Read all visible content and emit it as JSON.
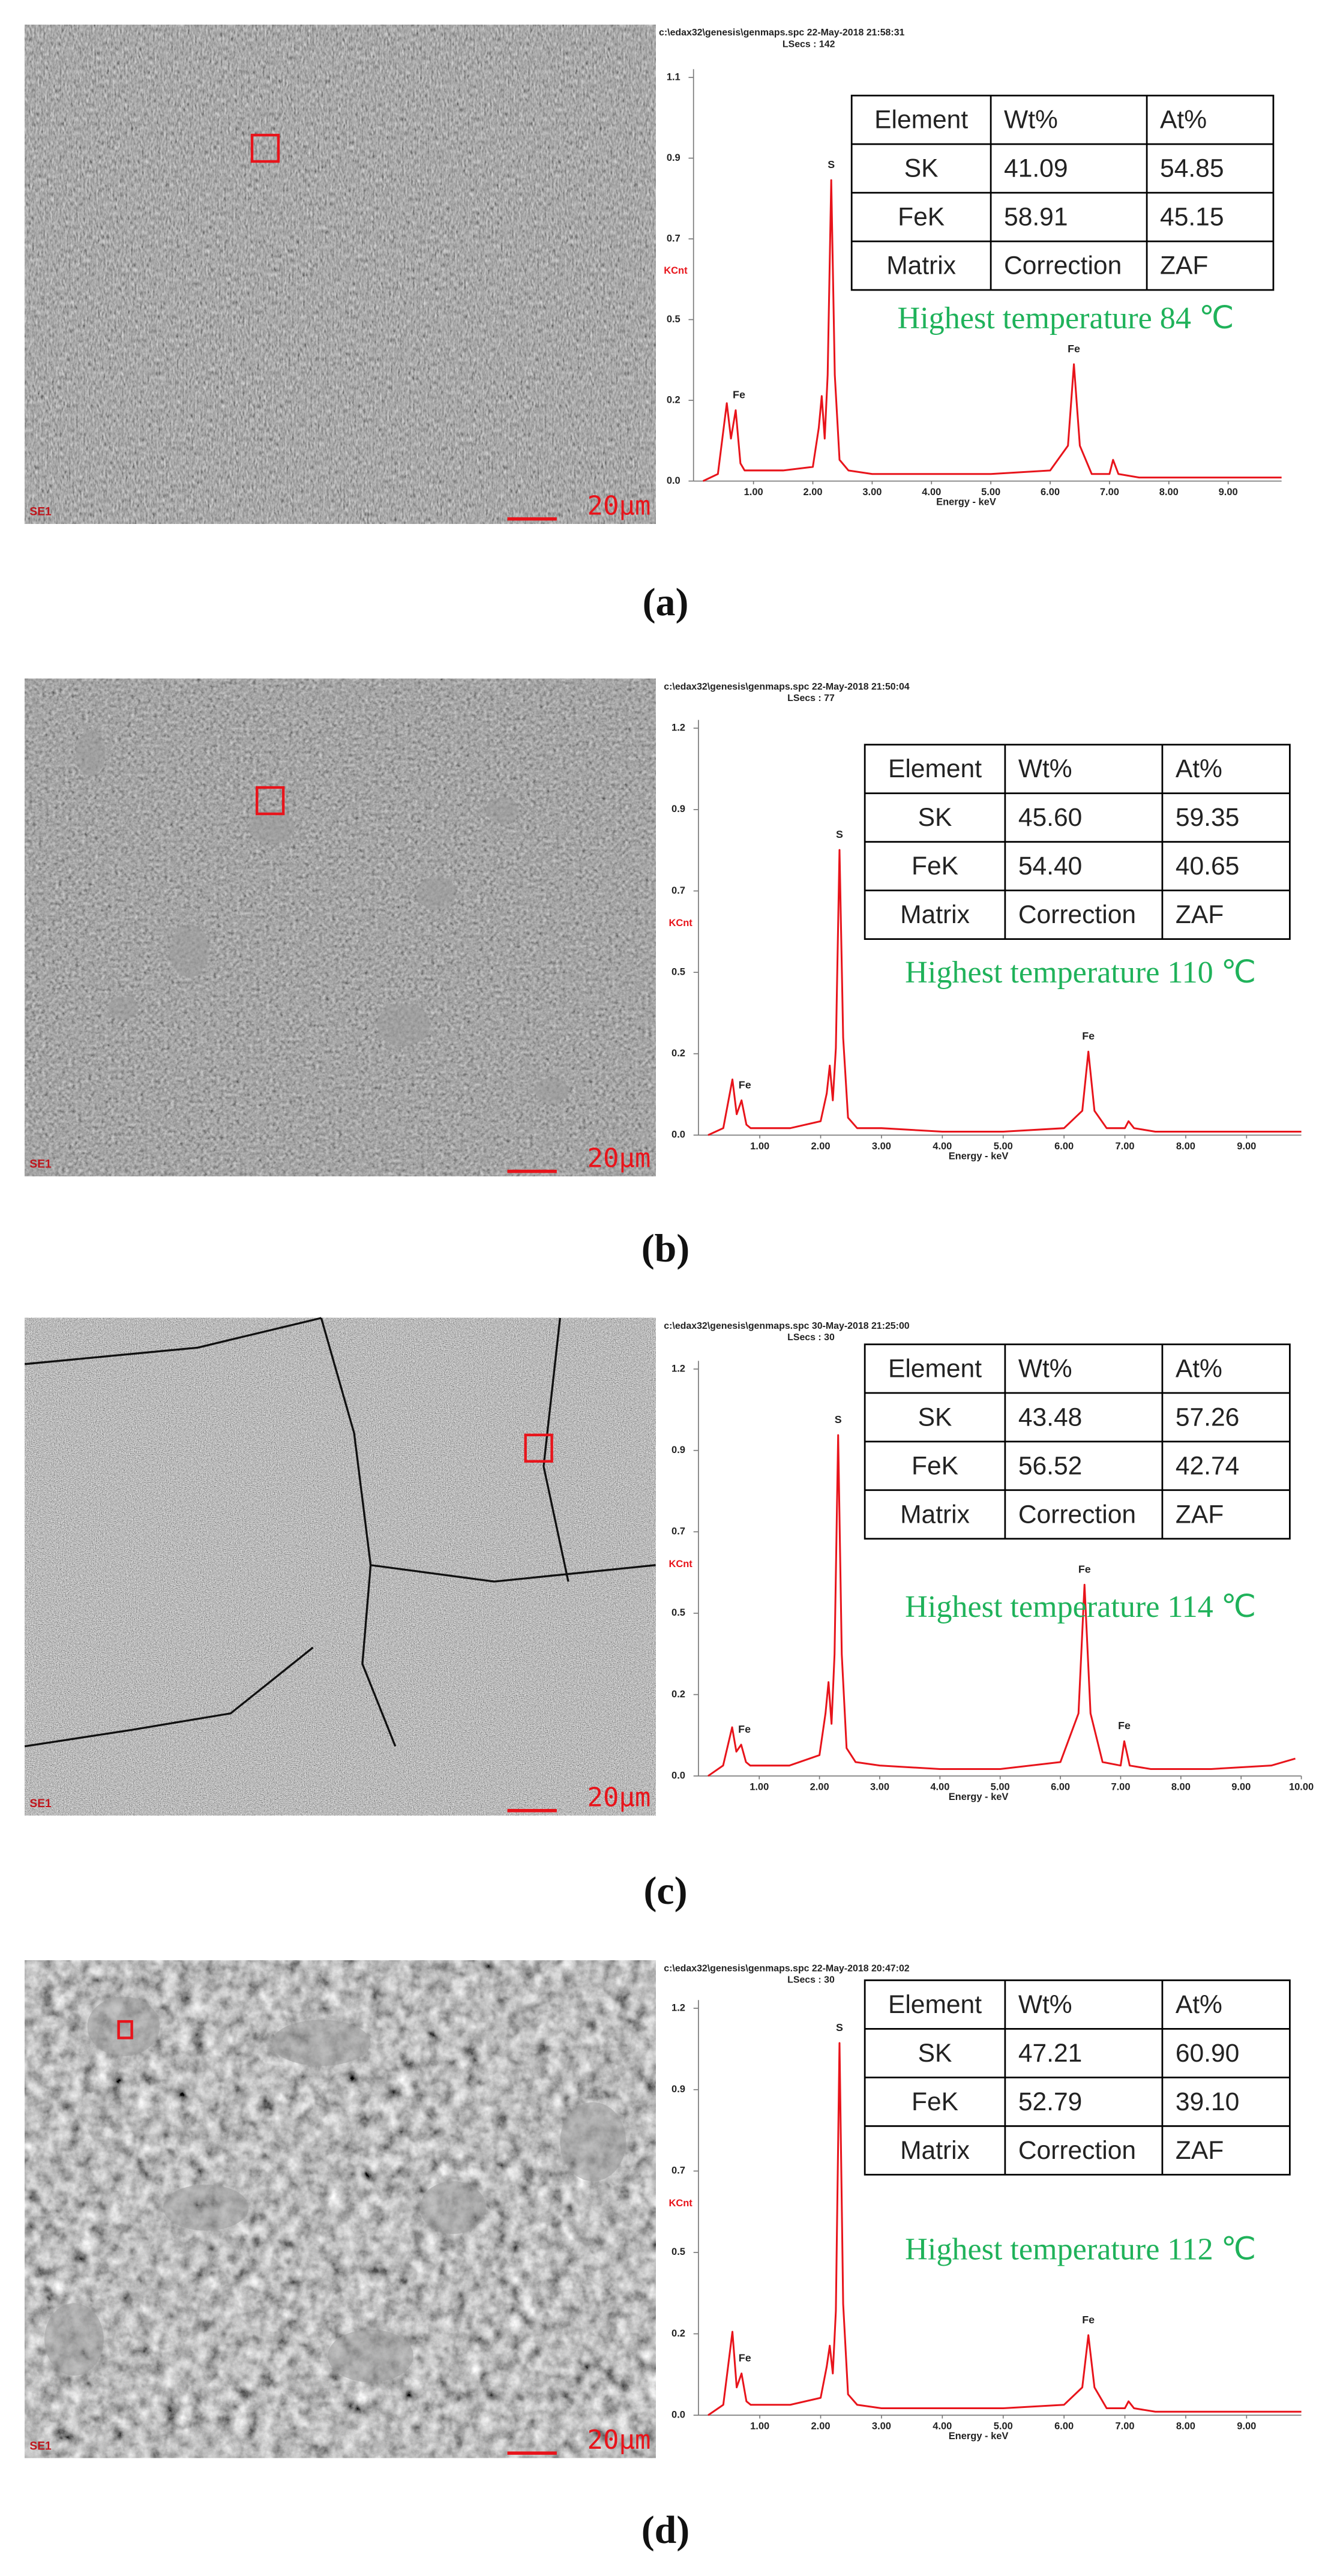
{
  "chart_data": [
    {
      "type": "line",
      "label": "(a)",
      "header": "c:\\edax32\\genesis\\genmaps.spc 22-May-2018 21:58:31",
      "lsecs": "LSecs : 142",
      "ylabel": "KCnt",
      "xlabel": "Energy - keV",
      "sem": {
        "detector": "SE1",
        "scale_bar": "20μm"
      },
      "peak_labels": [
        "Fe",
        "S",
        "Fe"
      ],
      "annotation": "Highest temperature 84 ℃",
      "table": {
        "header": [
          "Element",
          "Wt%",
          "At%"
        ],
        "rows": [
          [
            "SK",
            "41.09",
            "54.85"
          ],
          [
            "FeK",
            "58.91",
            "45.15"
          ],
          [
            "Matrix",
            "Correction",
            "ZAF"
          ]
        ]
      },
      "x": [
        0.15,
        0.4,
        0.55,
        0.62,
        0.7,
        0.78,
        0.85,
        1.0,
        1.5,
        2.0,
        2.1,
        2.15,
        2.2,
        2.25,
        2.31,
        2.37,
        2.45,
        2.6,
        3.0,
        4.0,
        5.0,
        6.0,
        6.3,
        6.4,
        6.5,
        6.7,
        7.0,
        7.06,
        7.15,
        7.5,
        8.5,
        9.5,
        9.9
      ],
      "series": [
        {
          "color": "#e8141b",
          "values": [
            0,
            0.02,
            0.22,
            0.12,
            0.2,
            0.05,
            0.03,
            0.03,
            0.03,
            0.04,
            0.15,
            0.24,
            0.12,
            0.3,
            0.85,
            0.3,
            0.06,
            0.03,
            0.02,
            0.02,
            0.02,
            0.03,
            0.1,
            0.33,
            0.1,
            0.02,
            0.02,
            0.06,
            0.02,
            0.01,
            0.01,
            0.01,
            0.01
          ]
        }
      ],
      "xlim": [
        0.1,
        9.9
      ],
      "ylim": [
        0,
        1.14
      ],
      "xticks": [
        {
          "value": 1,
          "label": "1.00"
        },
        {
          "value": 2,
          "label": "2.00"
        },
        {
          "value": 3,
          "label": "3.00"
        },
        {
          "value": 4,
          "label": "4.00"
        },
        {
          "value": 5,
          "label": "5.00"
        },
        {
          "value": 6,
          "label": "6.00"
        },
        {
          "value": 7,
          "label": "7.00"
        },
        {
          "value": 8,
          "label": "8.00"
        },
        {
          "value": 9,
          "label": "9.00"
        }
      ],
      "yticks": [
        {
          "value": 0,
          "label": "0.0"
        },
        {
          "value": 0.228,
          "label": "0.2"
        },
        {
          "value": 0.456,
          "label": "0.5"
        },
        {
          "value": 0.684,
          "label": "0.7"
        },
        {
          "value": 0.912,
          "label": "0.9"
        },
        {
          "value": 1.14,
          "label": "1.1"
        }
      ]
    },
    {
      "type": "line",
      "label": "(b)",
      "header": "c:\\edax32\\genesis\\genmaps.spc 22-May-2018 21:50:04",
      "lsecs": "LSecs : 77",
      "ylabel": "KCnt",
      "xlabel": "Energy - keV",
      "sem": {
        "detector": "SE1",
        "scale_bar": "20μm"
      },
      "peak_labels": [
        "Fe",
        "S",
        "Fe"
      ],
      "annotation": "Highest temperature 110 ℃",
      "table": {
        "header": [
          "Element",
          "Wt%",
          "At%"
        ],
        "rows": [
          [
            "SK",
            "45.60",
            "59.35"
          ],
          [
            "FeK",
            "54.40",
            "40.65"
          ],
          [
            "Matrix",
            "Correction",
            "ZAF"
          ]
        ]
      },
      "x": [
        0.15,
        0.4,
        0.55,
        0.62,
        0.7,
        0.78,
        0.85,
        1.0,
        1.5,
        2.0,
        2.1,
        2.15,
        2.2,
        2.25,
        2.31,
        2.37,
        2.45,
        2.6,
        3.0,
        4.0,
        5.0,
        6.0,
        6.3,
        6.4,
        6.5,
        6.7,
        7.0,
        7.06,
        7.15,
        7.5,
        8.5,
        9.5,
        9.9
      ],
      "series": [
        {
          "color": "#e8141b",
          "values": [
            0,
            0.02,
            0.16,
            0.06,
            0.1,
            0.03,
            0.02,
            0.02,
            0.02,
            0.04,
            0.12,
            0.2,
            0.1,
            0.25,
            0.82,
            0.28,
            0.05,
            0.02,
            0.02,
            0.01,
            0.01,
            0.02,
            0.07,
            0.24,
            0.07,
            0.02,
            0.02,
            0.04,
            0.02,
            0.01,
            0.01,
            0.01,
            0.01
          ]
        }
      ],
      "xlim": [
        0.1,
        9.9
      ],
      "ylim": [
        0,
        1.17
      ],
      "xticks": [
        {
          "value": 1,
          "label": "1.00"
        },
        {
          "value": 2,
          "label": "2.00"
        },
        {
          "value": 3,
          "label": "3.00"
        },
        {
          "value": 4,
          "label": "4.00"
        },
        {
          "value": 5,
          "label": "5.00"
        },
        {
          "value": 6,
          "label": "6.00"
        },
        {
          "value": 7,
          "label": "7.00"
        },
        {
          "value": 8,
          "label": "8.00"
        },
        {
          "value": 9,
          "label": "9.00"
        }
      ],
      "yticks": [
        {
          "value": 0,
          "label": "0.0"
        },
        {
          "value": 0.234,
          "label": "0.2"
        },
        {
          "value": 0.468,
          "label": "0.5"
        },
        {
          "value": 0.702,
          "label": "0.7"
        },
        {
          "value": 0.936,
          "label": "0.9"
        },
        {
          "value": 1.17,
          "label": "1.2"
        }
      ]
    },
    {
      "type": "line",
      "label": "(c)",
      "header": "c:\\edax32\\genesis\\genmaps.spc 30-May-2018 21:25:00",
      "lsecs": "LSecs : 30",
      "ylabel": "KCnt",
      "xlabel": "Energy - keV",
      "sem": {
        "detector": "SE1",
        "scale_bar": "20μm"
      },
      "peak_labels": [
        "Fe",
        "S",
        "Fe",
        "Fe"
      ],
      "annotation": "Highest temperature 114 ℃",
      "table": {
        "header": [
          "Element",
          "Wt%",
          "At%"
        ],
        "rows": [
          [
            "SK",
            "43.48",
            "57.26"
          ],
          [
            "FeK",
            "56.52",
            "42.74"
          ],
          [
            "Matrix",
            "Correction",
            "ZAF"
          ]
        ]
      },
      "x": [
        0.15,
        0.4,
        0.55,
        0.62,
        0.7,
        0.78,
        0.85,
        1.0,
        1.5,
        2.0,
        2.1,
        2.15,
        2.2,
        2.25,
        2.31,
        2.37,
        2.45,
        2.6,
        3.0,
        4.0,
        5.0,
        6.0,
        6.3,
        6.4,
        6.5,
        6.7,
        7.0,
        7.06,
        7.15,
        7.5,
        8.5,
        9.5,
        9.9
      ],
      "series": [
        {
          "color": "#e8141b",
          "values": [
            0,
            0.03,
            0.14,
            0.07,
            0.09,
            0.04,
            0.03,
            0.03,
            0.03,
            0.06,
            0.18,
            0.27,
            0.15,
            0.35,
            0.98,
            0.35,
            0.08,
            0.04,
            0.03,
            0.02,
            0.02,
            0.04,
            0.18,
            0.55,
            0.18,
            0.04,
            0.03,
            0.1,
            0.03,
            0.02,
            0.02,
            0.03,
            0.05
          ]
        }
      ],
      "xlim": [
        0.1,
        10.0
      ],
      "ylim": [
        0,
        1.17
      ],
      "xticks": [
        {
          "value": 1,
          "label": "1.00"
        },
        {
          "value": 2,
          "label": "2.00"
        },
        {
          "value": 3,
          "label": "3.00"
        },
        {
          "value": 4,
          "label": "4.00"
        },
        {
          "value": 5,
          "label": "5.00"
        },
        {
          "value": 6,
          "label": "6.00"
        },
        {
          "value": 7,
          "label": "7.00"
        },
        {
          "value": 8,
          "label": "8.00"
        },
        {
          "value": 9,
          "label": "9.00"
        },
        {
          "value": 10,
          "label": "10.00"
        }
      ],
      "yticks": [
        {
          "value": 0,
          "label": "0.0"
        },
        {
          "value": 0.234,
          "label": "0.2"
        },
        {
          "value": 0.468,
          "label": "0.5"
        },
        {
          "value": 0.702,
          "label": "0.7"
        },
        {
          "value": 0.936,
          "label": "0.9"
        },
        {
          "value": 1.17,
          "label": "1.2"
        }
      ]
    },
    {
      "type": "line",
      "label": "(d)",
      "header": "c:\\edax32\\genesis\\genmaps.spc 22-May-2018 20:47:02",
      "lsecs": "LSecs : 30",
      "ylabel": "KCnt",
      "xlabel": "Energy - keV",
      "sem": {
        "detector": "SE1",
        "scale_bar": "20μm"
      },
      "peak_labels": [
        "Fe",
        "S",
        "Fe"
      ],
      "annotation": "Highest temperature 112 ℃",
      "table": {
        "header": [
          "Element",
          "Wt%",
          "At%"
        ],
        "rows": [
          [
            "SK",
            "47.21",
            "60.90"
          ],
          [
            "FeK",
            "52.79",
            "39.10"
          ],
          [
            "Matrix",
            "Correction",
            "ZAF"
          ]
        ]
      },
      "x": [
        0.15,
        0.4,
        0.55,
        0.62,
        0.7,
        0.78,
        0.85,
        1.0,
        1.5,
        2.0,
        2.1,
        2.15,
        2.2,
        2.25,
        2.31,
        2.37,
        2.45,
        2.6,
        3.0,
        4.0,
        5.0,
        6.0,
        6.3,
        6.4,
        6.5,
        6.7,
        7.0,
        7.06,
        7.15,
        7.5,
        8.5,
        9.5,
        9.9
      ],
      "series": [
        {
          "color": "#e8141b",
          "values": [
            0,
            0.03,
            0.24,
            0.08,
            0.12,
            0.04,
            0.03,
            0.03,
            0.03,
            0.05,
            0.14,
            0.2,
            0.12,
            0.3,
            1.07,
            0.32,
            0.06,
            0.03,
            0.02,
            0.02,
            0.02,
            0.03,
            0.08,
            0.23,
            0.08,
            0.02,
            0.02,
            0.04,
            0.02,
            0.01,
            0.01,
            0.01,
            0.01
          ]
        }
      ],
      "xlim": [
        0.1,
        9.9
      ],
      "ylim": [
        0,
        1.17
      ],
      "xticks": [
        {
          "value": 1,
          "label": "1.00"
        },
        {
          "value": 2,
          "label": "2.00"
        },
        {
          "value": 3,
          "label": "3.00"
        },
        {
          "value": 4,
          "label": "4.00"
        },
        {
          "value": 5,
          "label": "5.00"
        },
        {
          "value": 6,
          "label": "6.00"
        },
        {
          "value": 7,
          "label": "7.00"
        },
        {
          "value": 8,
          "label": "8.00"
        },
        {
          "value": 9,
          "label": "9.00"
        }
      ],
      "yticks": [
        {
          "value": 0,
          "label": "0.0"
        },
        {
          "value": 0.234,
          "label": "0.2"
        },
        {
          "value": 0.468,
          "label": "0.5"
        },
        {
          "value": 0.702,
          "label": "0.7"
        },
        {
          "value": 0.936,
          "label": "0.9"
        },
        {
          "value": 1.17,
          "label": "1.2"
        }
      ]
    }
  ]
}
